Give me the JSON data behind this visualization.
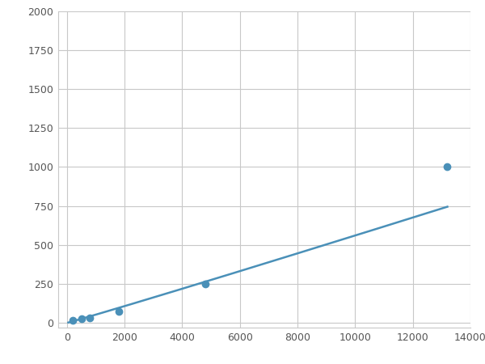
{
  "x": [
    200,
    500,
    800,
    1800,
    4800,
    13200
  ],
  "y": [
    15,
    25,
    30,
    75,
    250,
    1000
  ],
  "line_color": "#4a90b8",
  "marker_color": "#4a90b8",
  "marker_size": 6,
  "line_width": 1.8,
  "xlim": [
    -300,
    14000
  ],
  "ylim": [
    -30,
    2000
  ],
  "xticks": [
    0,
    2000,
    4000,
    6000,
    8000,
    10000,
    12000,
    14000
  ],
  "yticks": [
    0,
    250,
    500,
    750,
    1000,
    1250,
    1500,
    1750,
    2000
  ],
  "background_color": "#ffffff",
  "grid_color": "#c8c8c8",
  "figsize": [
    6.0,
    4.5
  ],
  "dpi": 100
}
